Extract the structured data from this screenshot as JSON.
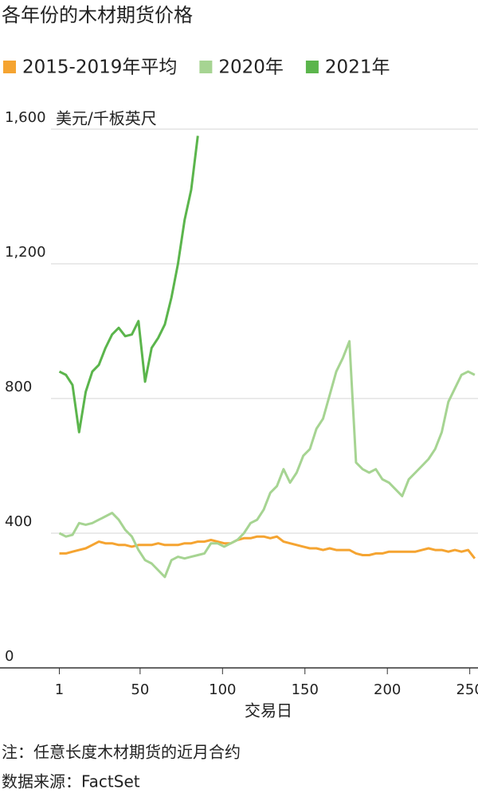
{
  "chart_data": {
    "type": "line",
    "title": "各年份的木材期货价格",
    "y_label": "美元/千板英尺",
    "x_label": "交易日",
    "note": "注：任意长度木材期货的近月合约",
    "source": "数据来源：FactSet",
    "x": [
      1,
      5,
      9,
      13,
      17,
      21,
      25,
      29,
      33,
      37,
      41,
      45,
      49,
      53,
      57,
      61,
      65,
      69,
      73,
      77,
      81,
      85,
      89,
      93,
      97,
      101,
      105,
      109,
      113,
      117,
      121,
      125,
      129,
      133,
      137,
      141,
      145,
      149,
      153,
      157,
      161,
      165,
      169,
      173,
      177,
      181,
      185,
      189,
      193,
      197,
      201,
      205,
      209,
      213,
      217,
      221,
      225,
      229,
      233,
      237,
      241,
      245,
      249,
      253
    ],
    "series": [
      {
        "name": "2015-2019年平均",
        "color": "#f5a431",
        "values": [
          340,
          340,
          345,
          350,
          355,
          365,
          375,
          370,
          370,
          365,
          365,
          360,
          365,
          365,
          365,
          370,
          365,
          365,
          365,
          370,
          370,
          375,
          375,
          380,
          375,
          370,
          370,
          380,
          385,
          385,
          390,
          390,
          385,
          390,
          375,
          370,
          365,
          360,
          355,
          355,
          350,
          355,
          350,
          350,
          350,
          340,
          335,
          335,
          340,
          340,
          345,
          345,
          345,
          345,
          345,
          350,
          355,
          350,
          350,
          345,
          350,
          345,
          350,
          325
        ]
      },
      {
        "name": "2020年",
        "color": "#a6d492",
        "values": [
          400,
          390,
          395,
          430,
          425,
          430,
          440,
          450,
          460,
          440,
          410,
          390,
          350,
          320,
          310,
          290,
          270,
          320,
          330,
          325,
          330,
          335,
          340,
          370,
          370,
          360,
          370,
          380,
          400,
          430,
          440,
          470,
          520,
          540,
          590,
          550,
          580,
          630,
          650,
          710,
          740,
          810,
          880,
          920,
          970,
          610,
          590,
          580,
          590,
          560,
          550,
          530,
          510,
          560,
          580,
          600,
          620,
          650,
          700,
          790,
          830,
          870,
          880,
          870
        ]
      },
      {
        "name": "2021年",
        "color": "#5bb54c",
        "values": [
          880,
          870,
          840,
          700,
          820,
          880,
          900,
          950,
          990,
          1010,
          985,
          990,
          1030,
          850,
          950,
          980,
          1020,
          1100,
          1200,
          1330,
          1420,
          1580,
          null,
          null,
          null,
          null,
          null,
          null,
          null,
          null,
          null,
          null,
          null,
          null,
          null,
          null,
          null,
          null,
          null,
          null,
          null,
          null,
          null,
          null,
          null,
          null,
          null,
          null,
          null,
          null,
          null,
          null,
          null,
          null,
          null,
          null,
          null,
          null,
          null,
          null,
          null,
          null,
          null,
          null
        ]
      }
    ],
    "xlim": [
      -35,
      255
    ],
    "ylim": [
      0,
      1600
    ],
    "xticks": [
      1,
      50,
      100,
      150,
      200,
      250
    ],
    "yticks": [
      0,
      400,
      800,
      {
        "value": 1200,
        "label": "1,200"
      },
      {
        "value": 1600,
        "label": "1,600"
      }
    ],
    "grid": true
  }
}
